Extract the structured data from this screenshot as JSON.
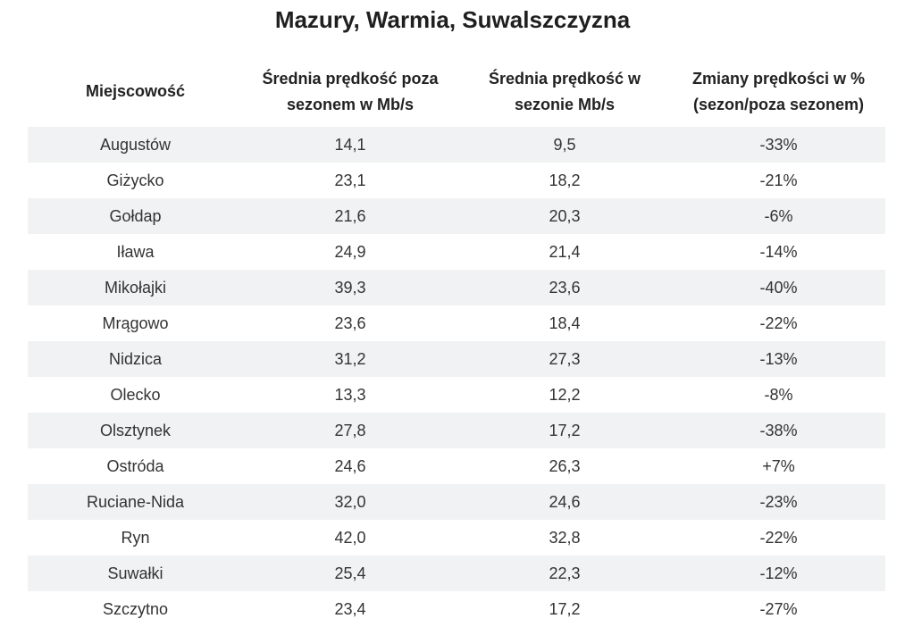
{
  "title": "Mazury, Warmia, Suwalszczyzna",
  "table": {
    "headers": [
      "Miejscowość",
      "Średnia prędkość poza sezonem w Mb/s",
      "Średnia prędkość w sezonie Mb/s",
      "Zmiany prędkości w % (sezon/poza sezonem)"
    ],
    "rows": [
      [
        "Augustów",
        "14,1",
        "9,5",
        "-33%"
      ],
      [
        "Giżycko",
        "23,1",
        "18,2",
        "-21%"
      ],
      [
        "Gołdap",
        "21,6",
        "20,3",
        "-6%"
      ],
      [
        "Iława",
        "24,9",
        "21,4",
        "-14%"
      ],
      [
        "Mikołajki",
        "39,3",
        "23,6",
        "-40%"
      ],
      [
        "Mrągowo",
        "23,6",
        "18,4",
        "-22%"
      ],
      [
        "Nidzica",
        "31,2",
        "27,3",
        "-13%"
      ],
      [
        "Olecko",
        "13,3",
        "12,2",
        "-8%"
      ],
      [
        "Olsztynek",
        "27,8",
        "17,2",
        "-38%"
      ],
      [
        "Ostróda",
        "24,6",
        "26,3",
        "+7%"
      ],
      [
        "Ruciane-Nida",
        "32,0",
        "24,6",
        "-23%"
      ],
      [
        "Ryn",
        "42,0",
        "32,8",
        "-22%"
      ],
      [
        "Suwałki",
        "25,4",
        "22,3",
        "-12%"
      ],
      [
        "Szczytno",
        "23,4",
        "17,2",
        "-27%"
      ]
    ]
  },
  "colors": {
    "stripe_background": "#f1f2f3",
    "text": "#222222"
  }
}
